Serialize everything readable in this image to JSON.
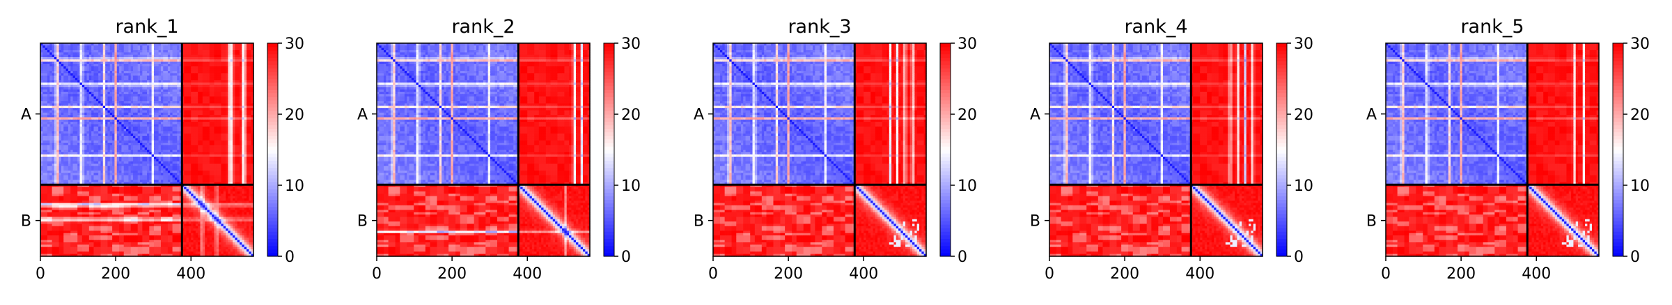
{
  "chart_data": [
    {
      "type": "heatmap",
      "title": "rank_1",
      "chains": [
        "A",
        "B"
      ],
      "chain_boundary": 376,
      "total_length": 566,
      "xticks": [
        0,
        200,
        400
      ],
      "colorbar": {
        "min": 0,
        "max": 30,
        "ticks": [
          0,
          10,
          20,
          30
        ],
        "colormap": "bwr"
      },
      "features": {
        "rowStripes": [
          [
            45,
            7
          ],
          [
            110,
            5
          ],
          [
            168,
            5
          ],
          [
            200,
            4
          ],
          [
            300,
            4
          ]
        ],
        "colStripes": [
          [
            505,
            10
          ],
          [
            540,
            8
          ]
        ],
        "bStripes": [
          [
            430,
            6
          ],
          [
            468,
            5
          ]
        ],
        "dimBlock": false
      }
    },
    {
      "type": "heatmap",
      "title": "rank_2",
      "chains": [
        "A",
        "B"
      ],
      "chain_boundary": 376,
      "total_length": 566,
      "xticks": [
        0,
        200,
        400
      ],
      "colorbar": {
        "min": 0,
        "max": 30,
        "ticks": [
          0,
          10,
          20,
          30
        ],
        "colormap": "bwr"
      },
      "features": {
        "rowStripes": [
          [
            45,
            7
          ],
          [
            110,
            5
          ],
          [
            168,
            5
          ],
          [
            200,
            4
          ],
          [
            300,
            4
          ]
        ],
        "colStripes": [
          [
            525,
            6
          ],
          [
            545,
            5
          ]
        ],
        "bStripes": [
          [
            500,
            5
          ]
        ],
        "dimBlock": false
      }
    },
    {
      "type": "heatmap",
      "title": "rank_3",
      "chains": [
        "A",
        "B"
      ],
      "chain_boundary": 376,
      "total_length": 566,
      "xticks": [
        0,
        200,
        400
      ],
      "colorbar": {
        "min": 0,
        "max": 30,
        "ticks": [
          0,
          10,
          20,
          30
        ],
        "colormap": "bwr"
      },
      "features": {
        "rowStripes": [
          [
            45,
            7
          ],
          [
            110,
            5
          ],
          [
            168,
            5
          ],
          [
            200,
            4
          ],
          [
            300,
            4
          ]
        ],
        "colStripes": [
          [
            470,
            5
          ],
          [
            490,
            5
          ],
          [
            510,
            5
          ],
          [
            530,
            5
          ]
        ],
        "bStripes": [],
        "dimBlock": true
      }
    },
    {
      "type": "heatmap",
      "title": "rank_4",
      "chains": [
        "A",
        "B"
      ],
      "chain_boundary": 376,
      "total_length": 566,
      "xticks": [
        0,
        200,
        400
      ],
      "colorbar": {
        "min": 0,
        "max": 30,
        "ticks": [
          0,
          10,
          20,
          30
        ],
        "colormap": "bwr"
      },
      "features": {
        "rowStripes": [
          [
            45,
            7
          ],
          [
            110,
            5
          ],
          [
            168,
            5
          ],
          [
            200,
            4
          ],
          [
            300,
            4
          ]
        ],
        "colStripes": [
          [
            480,
            5
          ],
          [
            500,
            5
          ],
          [
            520,
            5
          ],
          [
            540,
            5
          ]
        ],
        "bStripes": [],
        "dimBlock": true
      }
    },
    {
      "type": "heatmap",
      "title": "rank_5",
      "chains": [
        "A",
        "B"
      ],
      "chain_boundary": 376,
      "total_length": 566,
      "xticks": [
        0,
        200,
        400
      ],
      "colorbar": {
        "min": 0,
        "max": 30,
        "ticks": [
          0,
          10,
          20,
          30
        ],
        "colormap": "bwr"
      },
      "features": {
        "rowStripes": [
          [
            45,
            7
          ],
          [
            110,
            5
          ],
          [
            168,
            5
          ],
          [
            200,
            4
          ],
          [
            300,
            4
          ]
        ],
        "colStripes": [
          [
            500,
            5
          ],
          [
            525,
            5
          ]
        ],
        "bStripes": [],
        "dimBlock": true
      }
    }
  ]
}
